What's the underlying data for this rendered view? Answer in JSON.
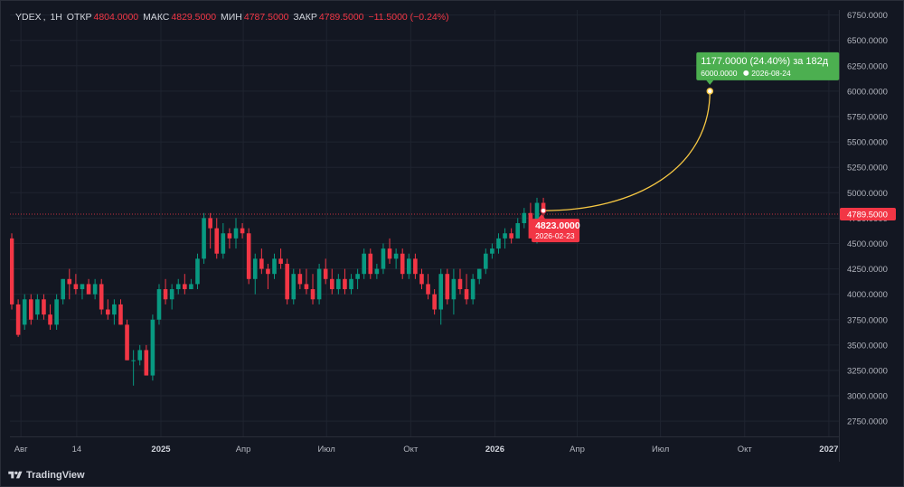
{
  "legend": {
    "symbol": "YDEX",
    "interval": "1H",
    "open_label": "ОТКР",
    "open_value": "4804.0000",
    "high_label": "МАКС",
    "high_value": "4829.5000",
    "low_label": "МИН",
    "low_value": "4787.5000",
    "close_label": "ЗАКР",
    "close_value": "4789.5000",
    "change": "−11.5000 (−0.24%)"
  },
  "footer": {
    "brand": "TradingView"
  },
  "colors": {
    "up": "#089981",
    "down": "#f23645",
    "forecast_line": "#f7c843",
    "target_badge": "#4caf50",
    "price_line": "#f23645",
    "grid": "#1f2430",
    "background": "#131722",
    "axis_text": "#b2b5be"
  },
  "chart_data": {
    "type": "candlestick",
    "symbol": "YDEX",
    "y_axis": {
      "range": [
        2600,
        6800
      ],
      "ticks": [
        "2750.0000",
        "3000.0000",
        "3250.0000",
        "3500.0000",
        "3750.0000",
        "4000.0000",
        "4250.0000",
        "4500.0000",
        "4750.0000",
        "5000.0000",
        "5250.0000",
        "5500.0000",
        "5750.0000",
        "6000.0000",
        "6250.0000",
        "6500.0000",
        "6750.0000"
      ]
    },
    "x_axis": {
      "range": [
        "2024-07-20",
        "2027-01-12"
      ],
      "ticks": [
        {
          "date": "2024-08-01",
          "label": "Авг",
          "bold": false
        },
        {
          "date": "2024-10-01",
          "label": "14",
          "bold": false
        },
        {
          "date": "2025-01-01",
          "label": "2025",
          "bold": true
        },
        {
          "date": "2025-04-01",
          "label": "Апр",
          "bold": false
        },
        {
          "date": "2025-07-01",
          "label": "Июл",
          "bold": false
        },
        {
          "date": "2025-10-01",
          "label": "Окт",
          "bold": false
        },
        {
          "date": "2026-01-01",
          "label": "2026",
          "bold": true
        },
        {
          "date": "2026-04-01",
          "label": "Апр",
          "bold": false
        },
        {
          "date": "2026-07-01",
          "label": "Июл",
          "bold": false
        },
        {
          "date": "2026-10-01",
          "label": "Окт",
          "bold": false
        },
        {
          "date": "2027-01-01",
          "label": "2027",
          "bold": true
        }
      ]
    },
    "candles": [
      [
        "2024-07-22",
        4550,
        4600,
        3850,
        3900
      ],
      [
        "2024-07-29",
        3900,
        3950,
        3580,
        3600
      ],
      [
        "2024-08-05",
        3700,
        4000,
        3650,
        3950
      ],
      [
        "2024-08-12",
        3950,
        4000,
        3700,
        3750
      ],
      [
        "2024-08-19",
        3800,
        4000,
        3750,
        3950
      ],
      [
        "2024-08-26",
        3950,
        4000,
        3750,
        3800
      ],
      [
        "2024-09-02",
        3800,
        3900,
        3650,
        3700
      ],
      [
        "2024-09-09",
        3700,
        4000,
        3650,
        3950
      ],
      [
        "2024-09-16",
        3950,
        4150,
        3900,
        4150
      ],
      [
        "2024-09-23",
        4150,
        4250,
        3950,
        4100
      ],
      [
        "2024-09-30",
        4100,
        4200,
        4000,
        4050
      ],
      [
        "2024-10-07",
        4050,
        4100,
        3950,
        4100
      ],
      [
        "2024-10-14",
        4100,
        4150,
        4000,
        4000
      ],
      [
        "2024-10-21",
        4000,
        4150,
        3950,
        4100
      ],
      [
        "2024-10-28",
        4100,
        4150,
        3800,
        3850
      ],
      [
        "2024-11-04",
        3850,
        3950,
        3750,
        3800
      ],
      [
        "2024-11-11",
        3800,
        3950,
        3700,
        3900
      ],
      [
        "2024-11-18",
        3900,
        3950,
        3700,
        3700
      ],
      [
        "2024-11-25",
        3700,
        3750,
        3350,
        3350
      ],
      [
        "2024-12-02",
        3350,
        3450,
        3100,
        3350
      ],
      [
        "2024-12-09",
        3350,
        3500,
        3300,
        3450
      ],
      [
        "2024-12-16",
        3450,
        3500,
        3200,
        3200
      ],
      [
        "2024-12-23",
        3200,
        3800,
        3150,
        3750
      ],
      [
        "2024-12-30",
        3750,
        4100,
        3700,
        4050
      ],
      [
        "2025-01-06",
        4050,
        4150,
        3900,
        3950
      ],
      [
        "2025-01-13",
        3950,
        4100,
        3850,
        4050
      ],
      [
        "2025-01-20",
        4050,
        4150,
        4000,
        4100
      ],
      [
        "2025-01-27",
        4100,
        4200,
        4000,
        4050
      ],
      [
        "2025-02-03",
        4050,
        4150,
        4050,
        4100
      ],
      [
        "2025-02-10",
        4100,
        4400,
        4050,
        4350
      ],
      [
        "2025-02-17",
        4350,
        4800,
        4300,
        4750
      ],
      [
        "2025-02-24",
        4750,
        4800,
        4450,
        4650
      ],
      [
        "2025-03-03",
        4650,
        4750,
        4350,
        4400
      ],
      [
        "2025-03-10",
        4400,
        4700,
        4350,
        4600
      ],
      [
        "2025-03-17",
        4600,
        4650,
        4450,
        4550
      ],
      [
        "2025-03-24",
        4550,
        4750,
        4450,
        4650
      ],
      [
        "2025-03-31",
        4650,
        4700,
        4550,
        4600
      ],
      [
        "2025-04-07",
        4600,
        4650,
        4100,
        4150
      ],
      [
        "2025-04-14",
        4150,
        4400,
        4000,
        4350
      ],
      [
        "2025-04-21",
        4350,
        4450,
        4200,
        4250
      ],
      [
        "2025-04-28",
        4250,
        4300,
        4050,
        4200
      ],
      [
        "2025-05-05",
        4200,
        4400,
        4150,
        4350
      ],
      [
        "2025-05-12",
        4350,
        4450,
        4250,
        4300
      ],
      [
        "2025-05-19",
        4300,
        4350,
        3900,
        3950
      ],
      [
        "2025-05-26",
        3950,
        4250,
        3900,
        4200
      ],
      [
        "2025-06-02",
        4200,
        4250,
        4050,
        4100
      ],
      [
        "2025-06-09",
        4100,
        4250,
        4000,
        4050
      ],
      [
        "2025-06-16",
        4050,
        4200,
        3900,
        3950
      ],
      [
        "2025-06-23",
        3950,
        4300,
        3900,
        4250
      ],
      [
        "2025-06-30",
        4250,
        4350,
        4100,
        4150
      ],
      [
        "2025-07-07",
        4150,
        4250,
        4000,
        4050
      ],
      [
        "2025-07-14",
        4050,
        4200,
        4000,
        4150
      ],
      [
        "2025-07-21",
        4150,
        4250,
        4000,
        4050
      ],
      [
        "2025-07-28",
        4050,
        4200,
        4000,
        4150
      ],
      [
        "2025-08-04",
        4150,
        4250,
        4050,
        4200
      ],
      [
        "2025-08-11",
        4200,
        4450,
        4150,
        4400
      ],
      [
        "2025-08-18",
        4400,
        4450,
        4150,
        4200
      ],
      [
        "2025-08-25",
        4200,
        4300,
        4150,
        4250
      ],
      [
        "2025-09-01",
        4250,
        4500,
        4200,
        4450
      ],
      [
        "2025-09-08",
        4450,
        4550,
        4300,
        4350
      ],
      [
        "2025-09-15",
        4350,
        4450,
        4250,
        4400
      ],
      [
        "2025-09-22",
        4400,
        4450,
        4150,
        4200
      ],
      [
        "2025-09-29",
        4200,
        4400,
        4150,
        4350
      ],
      [
        "2025-10-06",
        4350,
        4400,
        4150,
        4200
      ],
      [
        "2025-10-13",
        4200,
        4250,
        4050,
        4100
      ],
      [
        "2025-10-20",
        4100,
        4200,
        3950,
        4000
      ],
      [
        "2025-10-27",
        4000,
        4050,
        3800,
        3850
      ],
      [
        "2025-11-03",
        3850,
        4250,
        3700,
        4200
      ],
      [
        "2025-11-10",
        4200,
        4250,
        3900,
        3950
      ],
      [
        "2025-11-17",
        3950,
        4250,
        3800,
        4150
      ],
      [
        "2025-11-24",
        4150,
        4250,
        4000,
        4050
      ],
      [
        "2025-12-01",
        4050,
        4200,
        3900,
        3950
      ],
      [
        "2025-12-08",
        3950,
        4200,
        3900,
        4150
      ],
      [
        "2025-12-15",
        4150,
        4250,
        4100,
        4250
      ],
      [
        "2025-12-22",
        4250,
        4450,
        4200,
        4400
      ],
      [
        "2025-12-29",
        4400,
        4500,
        4350,
        4450
      ],
      [
        "2026-01-05",
        4450,
        4600,
        4400,
        4550
      ],
      [
        "2026-01-12",
        4550,
        4650,
        4450,
        4600
      ],
      [
        "2026-01-19",
        4600,
        4650,
        4500,
        4550
      ],
      [
        "2026-01-26",
        4550,
        4750,
        4550,
        4700
      ],
      [
        "2026-02-02",
        4700,
        4850,
        4650,
        4800
      ],
      [
        "2026-02-09",
        4800,
        4900,
        4550,
        4550
      ],
      [
        "2026-02-16",
        4550,
        4950,
        4500,
        4900
      ],
      [
        "2026-02-23",
        4900,
        4950,
        4750,
        4800
      ]
    ],
    "last_price": 4789.5,
    "last_price_label": "4789.5000",
    "forecast": {
      "start": {
        "date": "2026-02-23",
        "price": 4823
      },
      "target": {
        "date": "2026-08-24",
        "price": 6000
      },
      "start_label": "4823.0000",
      "start_date_label": "2026-02-23",
      "target_label": "1177.0000 (24.40%) за 182д",
      "target_sub_price": "6000.0000",
      "target_sub_date": "2026-08-24"
    }
  }
}
